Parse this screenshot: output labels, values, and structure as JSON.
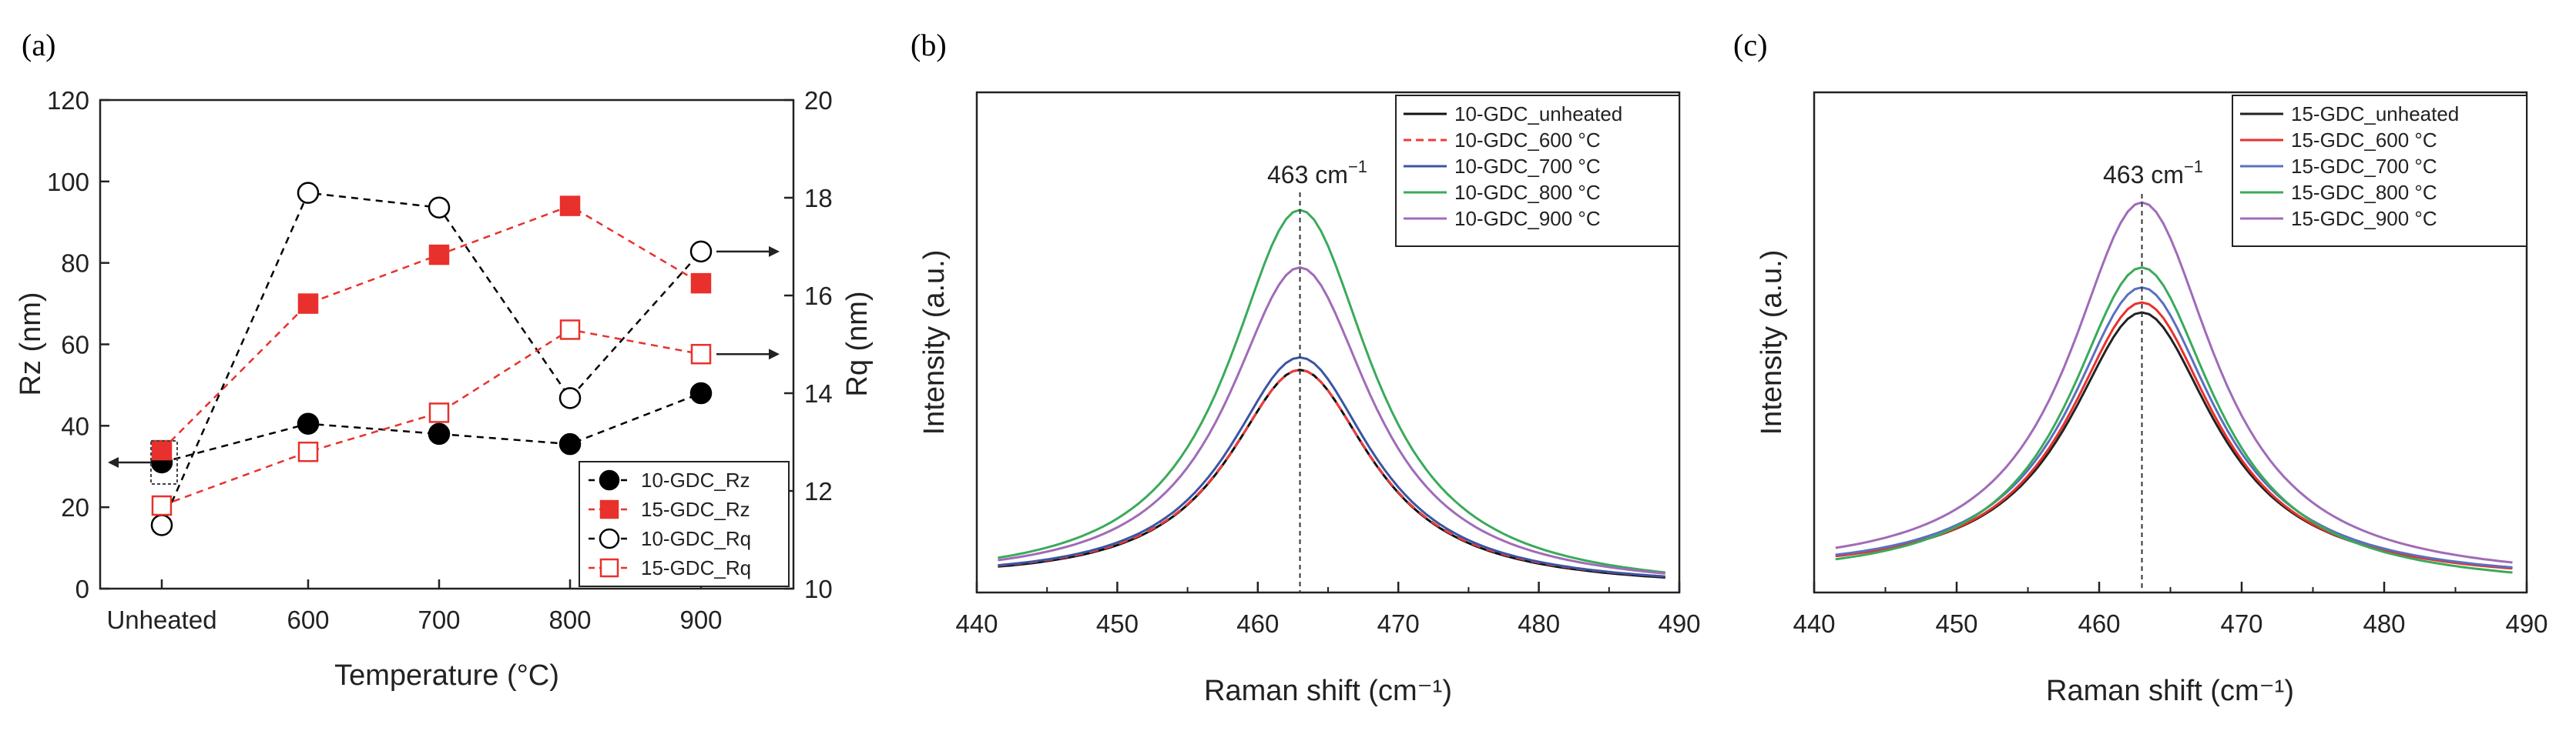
{
  "chart_data": [
    {
      "panel": "(a)",
      "type": "line",
      "categories": [
        "Unheated",
        "600",
        "700",
        "800",
        "900"
      ],
      "xlabel": "Temperature (°C)",
      "ylabel": "Rz (nm)",
      "ylim": [
        0,
        120
      ],
      "yticks": [
        0,
        20,
        40,
        60,
        80,
        100,
        120
      ],
      "y2label": "Rq (nm)",
      "y2lim": [
        10,
        20
      ],
      "y2ticks": [
        10,
        12,
        14,
        16,
        18,
        20
      ],
      "legend_position": "bottom-right",
      "series": [
        {
          "name": "10-GDC_Rz",
          "axis": "left",
          "color": "#000000",
          "marker": "filled-circle",
          "values": [
            31,
            40.5,
            38,
            35.5,
            48
          ]
        },
        {
          "name": "15-GDC_Rz",
          "axis": "left",
          "color": "#e8312c",
          "marker": "filled-square",
          "values": [
            34,
            70,
            82,
            94,
            75
          ]
        },
        {
          "name": "10-GDC_Rq",
          "axis": "right",
          "color": "#000000",
          "marker": "open-circle",
          "values": [
            11.3,
            18.1,
            17.8,
            13.9,
            16.9
          ]
        },
        {
          "name": "15-GDC_Rq",
          "axis": "right",
          "color": "#e8312c",
          "marker": "open-square",
          "values": [
            11.7,
            12.8,
            13.6,
            15.3,
            14.8
          ]
        }
      ]
    },
    {
      "panel": "(b)",
      "type": "line",
      "xlabel": "Raman shift (cm⁻¹)",
      "ylabel": "Intensity (a.u.)",
      "xlim": [
        440,
        490
      ],
      "xticks": [
        440,
        450,
        460,
        470,
        480,
        490
      ],
      "ylim": [
        0,
        1
      ],
      "annotation": {
        "text": "463 cm",
        "superscript": "−1",
        "x": 463
      },
      "legend_position": "top-right",
      "series": [
        {
          "name": "10-GDC_unheated",
          "color": "#111111",
          "dash": "solid",
          "peak": 0.445,
          "base": 0.03
        },
        {
          "name": "10-GDC_600 °C",
          "color": "#ef3b39",
          "dash": "dashed",
          "peak": 0.445,
          "base": 0.032
        },
        {
          "name": "10-GDC_700 °C",
          "color": "#3a55a4",
          "dash": "solid",
          "peak": 0.47,
          "base": 0.032
        },
        {
          "name": "10-GDC_800 °C",
          "color": "#3aaa5a",
          "dash": "solid",
          "peak": 0.765,
          "base": 0.04
        },
        {
          "name": "10-GDC_900 °C",
          "color": "#a06bb8",
          "dash": "solid",
          "peak": 0.65,
          "base": 0.038
        }
      ]
    },
    {
      "panel": "(c)",
      "type": "line",
      "xlabel": "Raman shift (cm⁻¹)",
      "ylabel": "Intensity (a.u.)",
      "xlim": [
        440,
        490
      ],
      "xticks": [
        440,
        450,
        460,
        470,
        480,
        490
      ],
      "ylim": [
        0,
        1
      ],
      "annotation": {
        "text": "463 cm",
        "superscript": "−1",
        "x": 463
      },
      "legend_position": "top-right",
      "series": [
        {
          "name": "15-GDC_unheated",
          "color": "#222222",
          "dash": "solid",
          "peak": 0.56,
          "base": 0.05
        },
        {
          "name": "15-GDC_600 °C",
          "color": "#e8312c",
          "dash": "solid",
          "peak": 0.58,
          "base": 0.048
        },
        {
          "name": "15-GDC_700 °C",
          "color": "#5a70c0",
          "dash": "solid",
          "peak": 0.61,
          "base": 0.05
        },
        {
          "name": "15-GDC_800 °C",
          "color": "#3aaa5a",
          "dash": "solid",
          "peak": 0.65,
          "base": 0.04
        },
        {
          "name": "15-GDC_900 °C",
          "color": "#a06bb8",
          "dash": "solid",
          "peak": 0.78,
          "base": 0.06
        }
      ]
    }
  ]
}
